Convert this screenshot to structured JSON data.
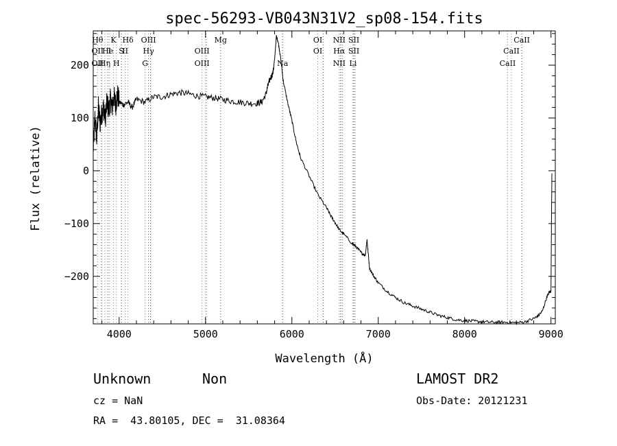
{
  "chart_data": {
    "type": "line",
    "title": "spec-56293-VB043N31V2_sp08-154.fits",
    "xlabel": "Wavelength (Å)",
    "ylabel": "Flux (relative)",
    "xlim": [
      3700,
      9050
    ],
    "ylim": [
      -290,
      265
    ],
    "xticks": [
      4000,
      5000,
      6000,
      7000,
      8000,
      9000
    ],
    "yticks": [
      -200,
      -100,
      0,
      100,
      200
    ],
    "spectrum": {
      "x": [
        3700,
        3720,
        3740,
        3760,
        3780,
        3800,
        3820,
        3840,
        3860,
        3880,
        3900,
        3920,
        3940,
        3960,
        3980,
        4000,
        4050,
        4100,
        4150,
        4200,
        4300,
        4400,
        4500,
        4600,
        4700,
        4800,
        4900,
        5000,
        5100,
        5200,
        5300,
        5400,
        5500,
        5600,
        5650,
        5700,
        5720,
        5750,
        5780,
        5800,
        5820,
        5840,
        5860,
        5880,
        5900,
        5950,
        6000,
        6050,
        6100,
        6200,
        6300,
        6400,
        6450,
        6500,
        6550,
        6600,
        6700,
        6750,
        6800,
        6850,
        6870,
        6880,
        6900,
        6950,
        7000,
        7100,
        7200,
        7300,
        7400,
        7500,
        7600,
        7700,
        7800,
        7900,
        8000,
        8100,
        8200,
        8300,
        8400,
        8500,
        8600,
        8700,
        8800,
        8850,
        8900,
        8950,
        8980,
        9000,
        9010
      ],
      "y": [
        40,
        100,
        60,
        120,
        90,
        110,
        120,
        100,
        130,
        115,
        135,
        120,
        140,
        125,
        145,
        130,
        125,
        130,
        120,
        135,
        130,
        140,
        140,
        145,
        148,
        146,
        142,
        140,
        138,
        135,
        132,
        130,
        128,
        128,
        130,
        145,
        160,
        175,
        185,
        210,
        255,
        245,
        225,
        200,
        170,
        130,
        95,
        55,
        25,
        -10,
        -45,
        -70,
        -85,
        -98,
        -112,
        -120,
        -138,
        -145,
        -155,
        -160,
        -130,
        -150,
        -185,
        -200,
        -212,
        -228,
        -240,
        -250,
        -256,
        -262,
        -268,
        -274,
        -278,
        -282,
        -284,
        -285,
        -286,
        -287,
        -287,
        -287,
        -288,
        -286,
        -280,
        -275,
        -266,
        -240,
        -230,
        -228,
        -5
      ]
    },
    "lines": [
      {
        "wl": 3750,
        "labels": [
          "Hθ",
          "OII",
          "OII"
        ]
      },
      {
        "wl": 3798,
        "labels": [],
        "color": "#cc0000"
      },
      {
        "wl": 3835,
        "labels": [
          "",
          "",
          "Hη"
        ]
      },
      {
        "wl": 3868,
        "labels": [
          "",
          "He"
        ],
        "color": "#cc0000"
      },
      {
        "wl": 3889,
        "labels": [
          "",
          "I"
        ]
      },
      {
        "wl": 3934,
        "labels": [
          "K",
          "",
          ""
        ]
      },
      {
        "wl": 3968,
        "labels": [
          "",
          "",
          "H"
        ]
      },
      {
        "wl": 4026,
        "labels": [
          "",
          "S"
        ],
        "color": "#cc0000"
      },
      {
        "wl": 4070,
        "labels": [
          "",
          "II"
        ]
      },
      {
        "wl": 4102,
        "labels": [
          "Hδ",
          "",
          ""
        ]
      },
      {
        "wl": 4300,
        "labels": [
          "",
          "",
          "G"
        ]
      },
      {
        "wl": 4340,
        "labels": [
          "OIII",
          "Hγ",
          ""
        ]
      },
      {
        "wl": 4363,
        "labels": [],
        "color": "#cc0000"
      },
      {
        "wl": 4959,
        "labels": [
          "",
          "OIII",
          "OIII"
        ]
      },
      {
        "wl": 5007,
        "labels": [],
        "color": "#cc0000"
      },
      {
        "wl": 5175,
        "labels": [
          "Mg",
          "",
          ""
        ],
        "color": "#cc0000"
      },
      {
        "wl": 5893,
        "labels": [
          "",
          "",
          "Na"
        ],
        "color": "#cc0000"
      },
      {
        "wl": 6300,
        "labels": [
          "OI",
          "OI",
          ""
        ]
      },
      {
        "wl": 6364,
        "labels": [],
        "color": "#cc0000"
      },
      {
        "wl": 6548,
        "labels": [
          "NII",
          "Hα",
          "NII"
        ]
      },
      {
        "wl": 6563,
        "labels": [],
        "color": "#cc0000"
      },
      {
        "wl": 6583,
        "labels": [],
        "color": "#cc0000"
      },
      {
        "wl": 6708,
        "labels": [
          "",
          "",
          "Li"
        ],
        "color": "#cc0000"
      },
      {
        "wl": 6717,
        "labels": [
          "SII",
          "SII",
          ""
        ]
      },
      {
        "wl": 6731,
        "labels": [],
        "color": "#cc0000"
      },
      {
        "wl": 8498,
        "labels": [
          "",
          "",
          "CaII"
        ]
      },
      {
        "wl": 8542,
        "labels": [
          "",
          "CaII",
          ""
        ]
      },
      {
        "wl": 8662,
        "labels": [
          "CaII",
          "",
          ""
        ],
        "color": "#cc0000"
      }
    ]
  },
  "footer": {
    "class_label": "Unknown",
    "subclass_label": "Non",
    "survey_label": "LAMOST DR2",
    "cz_text": "cz = NaN",
    "obs_date_text": "Obs-Date: 20121231",
    "coords_text": "RA =  43.80105, DEC =  31.08364"
  }
}
